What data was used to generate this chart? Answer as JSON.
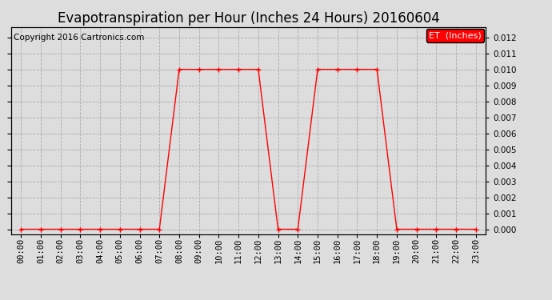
{
  "title": "Evapotranspiration per Hour (Inches 24 Hours) 20160604",
  "copyright": "Copyright 2016 Cartronics.com",
  "legend_label": "ET  (Inches)",
  "legend_bg": "#ff0000",
  "legend_text_color": "#ffffff",
  "line_color": "#ff0000",
  "marker": "+",
  "marker_size": 5,
  "marker_linewidth": 1.0,
  "line_width": 1.0,
  "background_color": "#dddddd",
  "plot_bg_color": "#dddddd",
  "grid_color": "#aaaaaa",
  "ylim_min": -0.0003,
  "ylim_max": 0.01265,
  "hours": [
    0,
    1,
    2,
    3,
    4,
    5,
    6,
    7,
    8,
    9,
    10,
    11,
    12,
    13,
    14,
    15,
    16,
    17,
    18,
    19,
    20,
    21,
    22,
    23
  ],
  "values": [
    0.0,
    0.0,
    0.0,
    0.0,
    0.0,
    0.0,
    0.0,
    0.0,
    0.01,
    0.01,
    0.01,
    0.01,
    0.01,
    0.0,
    0.0,
    0.01,
    0.01,
    0.01,
    0.01,
    0.0,
    0.0,
    0.0,
    0.0,
    0.0
  ],
  "title_fontsize": 12,
  "copyright_fontsize": 7.5,
  "tick_fontsize": 7.5,
  "legend_fontsize": 8,
  "fig_width": 6.9,
  "fig_height": 3.75,
  "dpi": 100
}
